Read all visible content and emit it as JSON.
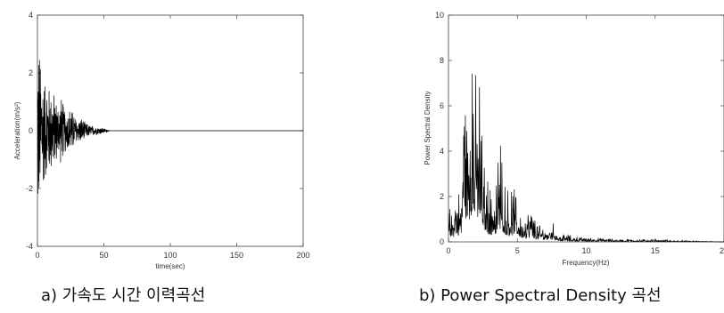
{
  "chart_data": [
    {
      "type": "line",
      "caption": "a) 가속도 시간 이력곡선",
      "xlabel": "time(sec)",
      "ylabel": "Acceleration(m/s²)",
      "xlim": [
        0,
        200
      ],
      "ylim": [
        -4,
        4
      ],
      "xticks": [
        0,
        50,
        100,
        150,
        200
      ],
      "yticks": [
        -4,
        -2,
        0,
        2,
        4
      ],
      "envelope": {
        "t": [
          0,
          1,
          2,
          3,
          4,
          5,
          6,
          8,
          10,
          12,
          14,
          16,
          18,
          20,
          22,
          25,
          28,
          30,
          33,
          36,
          40,
          45,
          50,
          52,
          55,
          200
        ],
        "amp": [
          3.6,
          3.3,
          2.9,
          2.7,
          2.3,
          2.0,
          1.9,
          1.7,
          1.6,
          1.5,
          1.2,
          1.0,
          1.3,
          0.9,
          0.7,
          0.9,
          0.6,
          0.4,
          0.5,
          0.3,
          0.2,
          0.15,
          0.1,
          0.05,
          0,
          0
        ]
      }
    },
    {
      "type": "line",
      "caption": "b) Power Spectral Density 곡선",
      "xlabel": "Frequency(Hz)",
      "ylabel": "Power Spectral Density",
      "xlim": [
        0,
        20
      ],
      "ylim": [
        0,
        10
      ],
      "xticks": [
        0,
        5,
        10,
        15,
        20
      ],
      "yticks": [
        0,
        2,
        4,
        6,
        8,
        10
      ],
      "peaks": {
        "f": [
          0.3,
          0.6,
          0.9,
          1.2,
          1.4,
          1.7,
          2.0,
          2.2,
          2.5,
          2.8,
          3.1,
          3.4,
          3.8,
          4.1,
          4.4,
          4.8,
          5.2,
          5.6,
          6.0,
          6.5,
          7.0,
          7.5,
          8.0,
          9.0,
          10.0,
          12.0,
          15.0
        ],
        "psd": [
          1.2,
          2.0,
          1.5,
          7.6,
          4.5,
          8.3,
          5.0,
          6.8,
          3.0,
          2.5,
          1.8,
          2.3,
          3.5,
          2.2,
          1.6,
          1.9,
          1.1,
          0.9,
          1.2,
          0.6,
          0.5,
          0.7,
          0.3,
          0.2,
          0.15,
          0.1,
          0.08
        ]
      }
    }
  ]
}
